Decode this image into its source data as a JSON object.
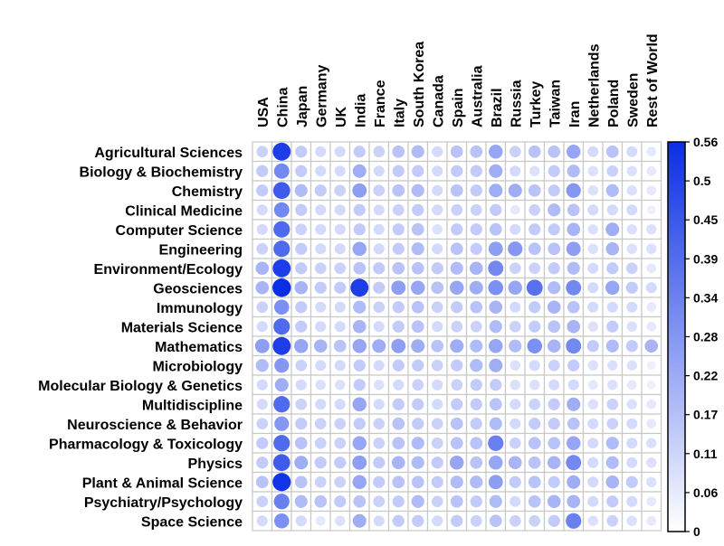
{
  "chart_data": {
    "type": "heatmap",
    "marker": "circle",
    "title": "",
    "xlabel": "",
    "ylabel": "",
    "columns": [
      "USA",
      "China",
      "Japan",
      "Germany",
      "UK",
      "India",
      "France",
      "Italy",
      "South Korea",
      "Canada",
      "Spain",
      "Australia",
      "Brazil",
      "Russia",
      "Turkey",
      "Taiwan",
      "Iran",
      "Netherlands",
      "Poland",
      "Sweden",
      "Rest of World"
    ],
    "rows": [
      "Agricultural Sciences",
      "Biology & Biochemistry",
      "Chemistry",
      "Clinical Medicine",
      "Computer Science",
      "Engineering",
      "Environment/Ecology",
      "Geosciences",
      "Immunology",
      "Materials Science",
      "Mathematics",
      "Microbiology",
      "Molecular Biology & Genetics",
      "Multidiscipline",
      "Neuroscience & Behavior",
      "Pharmacology & Toxicology",
      "Physics",
      "Plant & Animal Science",
      "Psychiatry/Psychology",
      "Space Science"
    ],
    "values": [
      [
        0.12,
        0.52,
        0.14,
        0.1,
        0.1,
        0.14,
        0.12,
        0.16,
        0.18,
        0.1,
        0.16,
        0.16,
        0.24,
        0.12,
        0.16,
        0.16,
        0.24,
        0.1,
        0.16,
        0.1,
        0.06
      ],
      [
        0.14,
        0.32,
        0.14,
        0.1,
        0.1,
        0.22,
        0.1,
        0.14,
        0.14,
        0.1,
        0.14,
        0.14,
        0.22,
        0.1,
        0.08,
        0.14,
        0.18,
        0.08,
        0.12,
        0.08,
        0.06
      ],
      [
        0.14,
        0.44,
        0.18,
        0.14,
        0.12,
        0.26,
        0.12,
        0.16,
        0.18,
        0.1,
        0.16,
        0.14,
        0.22,
        0.22,
        0.16,
        0.14,
        0.28,
        0.08,
        0.18,
        0.08,
        0.06
      ],
      [
        0.1,
        0.32,
        0.14,
        0.1,
        0.1,
        0.14,
        0.1,
        0.12,
        0.14,
        0.1,
        0.12,
        0.12,
        0.14,
        0.06,
        0.12,
        0.18,
        0.16,
        0.1,
        0.1,
        0.1,
        0.04
      ],
      [
        0.1,
        0.4,
        0.12,
        0.1,
        0.1,
        0.14,
        0.1,
        0.14,
        0.16,
        0.08,
        0.14,
        0.14,
        0.16,
        0.1,
        0.14,
        0.14,
        0.2,
        0.08,
        0.22,
        0.08,
        0.08
      ],
      [
        0.12,
        0.4,
        0.14,
        0.1,
        0.1,
        0.24,
        0.1,
        0.14,
        0.18,
        0.1,
        0.16,
        0.14,
        0.26,
        0.28,
        0.16,
        0.16,
        0.26,
        0.08,
        0.2,
        0.08,
        0.08
      ],
      [
        0.2,
        0.52,
        0.14,
        0.12,
        0.12,
        0.16,
        0.14,
        0.16,
        0.16,
        0.14,
        0.18,
        0.2,
        0.32,
        0.12,
        0.12,
        0.14,
        0.18,
        0.1,
        0.14,
        0.12,
        0.06
      ],
      [
        0.2,
        0.56,
        0.2,
        0.14,
        0.14,
        0.52,
        0.14,
        0.26,
        0.24,
        0.16,
        0.24,
        0.22,
        0.3,
        0.24,
        0.38,
        0.18,
        0.32,
        0.1,
        0.24,
        0.14,
        0.1
      ],
      [
        0.12,
        0.3,
        0.14,
        0.1,
        0.1,
        0.18,
        0.12,
        0.14,
        0.16,
        0.12,
        0.14,
        0.16,
        0.2,
        0.1,
        0.14,
        0.2,
        0.16,
        0.1,
        0.1,
        0.1,
        0.06
      ],
      [
        0.1,
        0.4,
        0.14,
        0.1,
        0.1,
        0.2,
        0.1,
        0.14,
        0.16,
        0.1,
        0.12,
        0.12,
        0.18,
        0.12,
        0.14,
        0.16,
        0.2,
        0.08,
        0.14,
        0.08,
        0.06
      ],
      [
        0.26,
        0.52,
        0.24,
        0.2,
        0.16,
        0.24,
        0.22,
        0.26,
        0.22,
        0.16,
        0.22,
        0.18,
        0.24,
        0.18,
        0.3,
        0.2,
        0.32,
        0.14,
        0.18,
        0.14,
        0.2
      ],
      [
        0.18,
        0.28,
        0.12,
        0.1,
        0.1,
        0.14,
        0.1,
        0.14,
        0.14,
        0.12,
        0.14,
        0.18,
        0.22,
        0.08,
        0.1,
        0.12,
        0.14,
        0.08,
        0.08,
        0.08,
        0.04
      ],
      [
        0.1,
        0.22,
        0.1,
        0.08,
        0.08,
        0.14,
        0.08,
        0.1,
        0.12,
        0.1,
        0.12,
        0.14,
        0.14,
        0.08,
        0.08,
        0.1,
        0.1,
        0.06,
        0.08,
        0.06,
        0.04
      ],
      [
        0.1,
        0.4,
        0.12,
        0.1,
        0.1,
        0.24,
        0.1,
        0.14,
        0.14,
        0.1,
        0.14,
        0.14,
        0.16,
        0.1,
        0.12,
        0.14,
        0.22,
        0.08,
        0.12,
        0.08,
        0.06
      ],
      [
        0.12,
        0.28,
        0.14,
        0.12,
        0.12,
        0.14,
        0.12,
        0.16,
        0.14,
        0.12,
        0.16,
        0.14,
        0.18,
        0.1,
        0.14,
        0.14,
        0.16,
        0.1,
        0.12,
        0.1,
        0.06
      ],
      [
        0.14,
        0.4,
        0.16,
        0.12,
        0.12,
        0.24,
        0.12,
        0.16,
        0.18,
        0.12,
        0.16,
        0.16,
        0.34,
        0.12,
        0.16,
        0.16,
        0.24,
        0.1,
        0.18,
        0.1,
        0.08
      ],
      [
        0.14,
        0.44,
        0.22,
        0.14,
        0.14,
        0.26,
        0.14,
        0.2,
        0.18,
        0.14,
        0.24,
        0.16,
        0.24,
        0.2,
        0.16,
        0.2,
        0.32,
        0.1,
        0.18,
        0.1,
        0.08
      ],
      [
        0.16,
        0.54,
        0.16,
        0.12,
        0.12,
        0.24,
        0.14,
        0.16,
        0.16,
        0.14,
        0.18,
        0.18,
        0.26,
        0.14,
        0.16,
        0.14,
        0.22,
        0.1,
        0.2,
        0.14,
        0.08
      ],
      [
        0.12,
        0.34,
        0.18,
        0.16,
        0.14,
        0.16,
        0.12,
        0.14,
        0.18,
        0.12,
        0.16,
        0.14,
        0.18,
        0.1,
        0.16,
        0.2,
        0.2,
        0.1,
        0.14,
        0.1,
        0.06
      ],
      [
        0.1,
        0.3,
        0.1,
        0.06,
        0.08,
        0.22,
        0.1,
        0.14,
        0.14,
        0.1,
        0.14,
        0.12,
        0.16,
        0.12,
        0.12,
        0.14,
        0.34,
        0.08,
        0.12,
        0.08,
        0.06
      ]
    ],
    "colorbar": {
      "min": 0,
      "max": 0.56,
      "ticks": [
        "0.56",
        "0.5",
        "0.45",
        "0.39",
        "0.34",
        "0.28",
        "0.22",
        "0.17",
        "0.11",
        "0.06",
        "0"
      ],
      "color_low": "#ffffff",
      "color_high": "#0a2ee6"
    },
    "grid": true,
    "legend": "colorbar-right"
  }
}
